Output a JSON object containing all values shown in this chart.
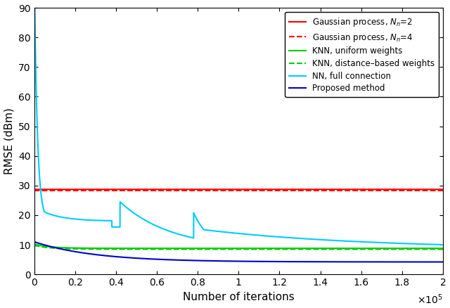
{
  "title": "",
  "xlabel": "Number of iterations",
  "ylabel": "RMSE (dBm)",
  "xlim": [
    0,
    200000
  ],
  "ylim": [
    0,
    90
  ],
  "yticks": [
    0,
    10,
    20,
    30,
    40,
    50,
    60,
    70,
    80,
    90
  ],
  "xtick_vals": [
    0,
    20000,
    40000,
    60000,
    80000,
    100000,
    120000,
    140000,
    160000,
    180000,
    200000
  ],
  "xtick_labels": [
    "0",
    "0.2",
    "0.4",
    "0.6",
    "0.8",
    "1",
    "1.2",
    "1.4",
    "1.6",
    "1.8",
    "2"
  ],
  "gp_nn2_value": 28.7,
  "gp_nn4_value": 28.3,
  "knn_uniform_end": 8.8,
  "knn_distance_end": 8.5,
  "nn_full_end": 8.5,
  "proposed_end": 4.2,
  "colors": {
    "gp_nn2": "#ff0000",
    "gp_nn4": "#ff0000",
    "knn_uniform": "#00cc00",
    "knn_distance": "#00cc00",
    "nn_full": "#00ccff",
    "proposed": "#0000cc"
  },
  "legend_labels": {
    "gp_nn2": "Gaussian process, $N_n$=2",
    "gp_nn4": "Gaussian process, $N_n$=4",
    "knn_uniform": "KNN, uniform weights",
    "knn_distance": "KNN, distance–based weights",
    "nn_full": "NN, full connection",
    "proposed": "Proposed method"
  },
  "n_points": 10000
}
